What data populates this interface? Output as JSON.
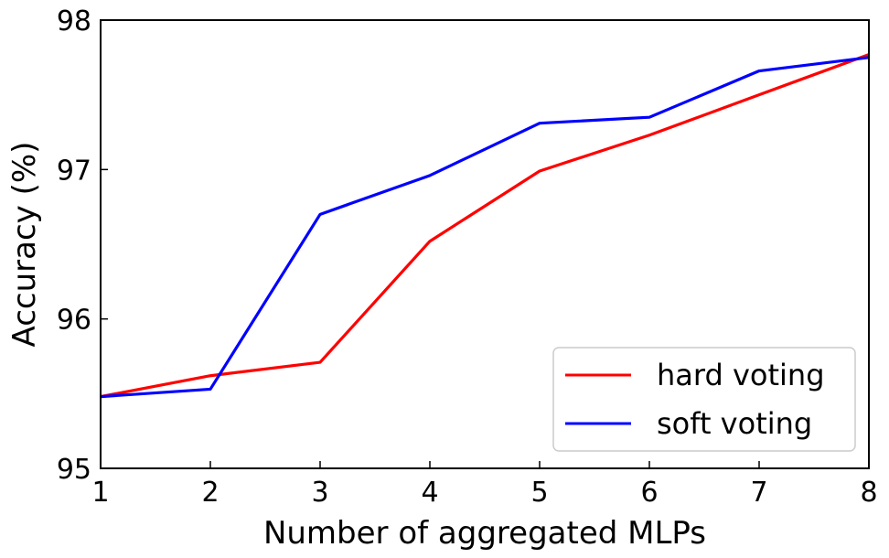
{
  "chart_data": {
    "type": "line",
    "xlabel": "Number of aggregated MLPs",
    "ylabel": "Accuracy (%)",
    "x": [
      1,
      2,
      3,
      4,
      5,
      6,
      7,
      8
    ],
    "xlim": [
      1,
      8
    ],
    "ylim": [
      95,
      98
    ],
    "xticks": [
      "1",
      "2",
      "3",
      "4",
      "5",
      "6",
      "7",
      "8"
    ],
    "yticks": [
      "95",
      "96",
      "97",
      "98"
    ],
    "grid": false,
    "legend_position": "lower-right",
    "series": [
      {
        "name": "hard voting",
        "color": "#ff0000",
        "values": [
          95.48,
          95.62,
          95.71,
          96.52,
          96.99,
          97.23,
          97.5,
          97.77
        ]
      },
      {
        "name": "soft voting",
        "color": "#0000ff",
        "values": [
          95.48,
          95.53,
          96.7,
          96.96,
          97.31,
          97.35,
          97.66,
          97.75
        ]
      }
    ]
  }
}
